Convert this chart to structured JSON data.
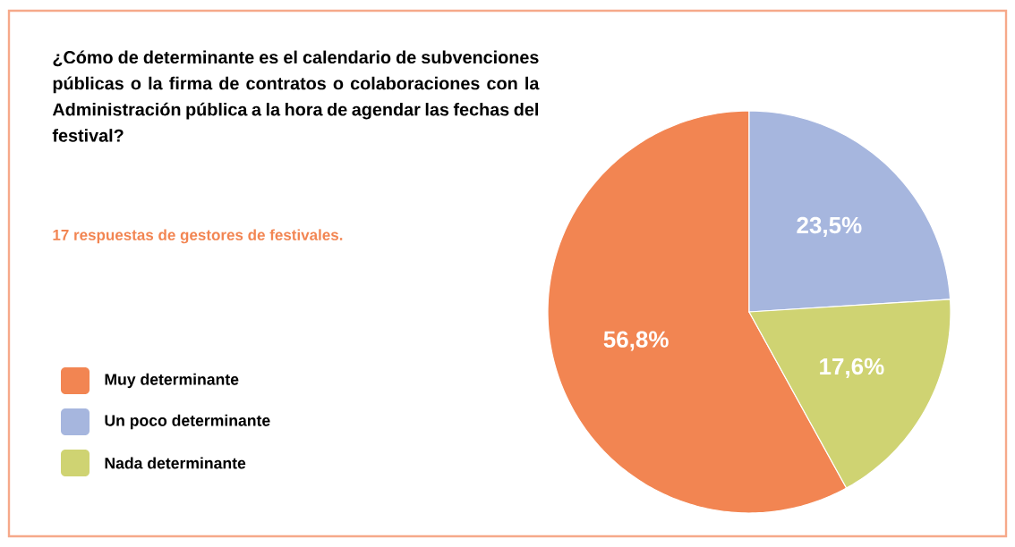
{
  "chart_data": {
    "type": "pie",
    "title": "¿Cómo de determinante es el calendario de subvenciones públicas o la firma de contratos o colaboraciones con la Administración pública a la hora de agendar las fechas del festival?",
    "subtitle": "17 respuestas de gestores de festivales.",
    "categories": [
      "Muy determinante",
      "Un poco determinante",
      "Nada determinante"
    ],
    "values": [
      56.8,
      23.5,
      17.6
    ],
    "value_labels": [
      "56,8%",
      "23,5%",
      "17,6%"
    ],
    "colors": [
      "#f28552",
      "#a6b6de",
      "#cfd372"
    ],
    "legend": "left"
  }
}
